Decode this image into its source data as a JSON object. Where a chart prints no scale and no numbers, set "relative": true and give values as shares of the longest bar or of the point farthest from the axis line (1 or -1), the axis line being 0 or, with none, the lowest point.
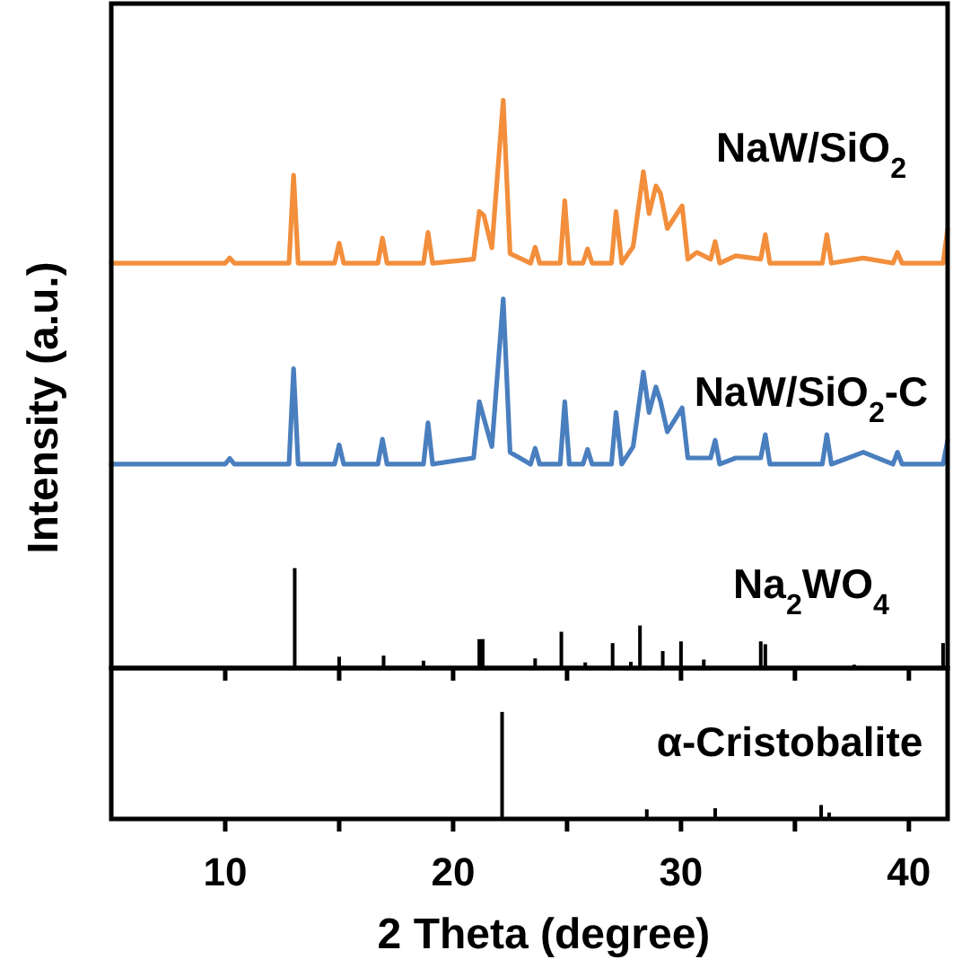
{
  "chart_data": [
    {
      "type": "line",
      "relative": true,
      "ylabel": "Intensity (a.u.)",
      "xlim": [
        5,
        41.7
      ],
      "xticks": [
        10,
        {
          "value": 15,
          "label": null
        },
        20,
        {
          "value": 25,
          "label": null
        },
        30,
        {
          "value": 35,
          "label": null
        },
        40
      ],
      "tick_labels": false,
      "series": [
        {
          "name": "NaW/SiO$_{2}$",
          "color": "#f28e3c",
          "x": [
            5,
            10.0,
            10.2,
            10.4,
            12.8,
            13.0,
            13.2,
            14.8,
            15.0,
            15.2,
            16.7,
            16.9,
            17.1,
            18.7,
            18.9,
            19.1,
            20.9,
            21.15,
            21.35,
            21.7,
            22.2,
            22.5,
            23.4,
            23.6,
            23.8,
            24.7,
            24.9,
            25.1,
            25.7,
            25.9,
            26.1,
            26.95,
            27.15,
            27.4,
            27.9,
            28.35,
            28.6,
            28.9,
            29.1,
            29.4,
            30.05,
            30.3,
            30.7,
            31.3,
            31.5,
            31.7,
            32.4,
            33.5,
            33.7,
            33.9,
            36.2,
            36.4,
            36.6,
            38.0,
            39.3,
            39.5,
            39.7,
            41.5,
            41.7
          ],
          "values": [
            0.713,
            0.713,
            0.722,
            0.713,
            0.713,
            0.868,
            0.713,
            0.713,
            0.748,
            0.713,
            0.713,
            0.757,
            0.713,
            0.713,
            0.767,
            0.713,
            0.72,
            0.804,
            0.797,
            0.74,
            1.0,
            0.73,
            0.713,
            0.741,
            0.713,
            0.713,
            0.823,
            0.713,
            0.713,
            0.738,
            0.713,
            0.713,
            0.804,
            0.713,
            0.742,
            0.874,
            0.8,
            0.849,
            0.836,
            0.774,
            0.814,
            0.72,
            0.732,
            0.72,
            0.751,
            0.713,
            0.726,
            0.72,
            0.763,
            0.713,
            0.713,
            0.763,
            0.713,
            0.722,
            0.713,
            0.732,
            0.713,
            0.713,
            0.773
          ]
        },
        {
          "name": "NaW/SiO$_{2}$-C",
          "color": "#4a7fbf",
          "x": [
            5,
            10.0,
            10.2,
            10.4,
            12.8,
            13.0,
            13.2,
            14.8,
            15.0,
            15.2,
            16.7,
            16.9,
            17.1,
            18.7,
            18.9,
            19.1,
            20.9,
            21.15,
            21.35,
            21.7,
            22.2,
            22.5,
            23.4,
            23.6,
            23.8,
            24.7,
            24.9,
            25.1,
            25.7,
            25.9,
            26.1,
            26.95,
            27.15,
            27.4,
            27.9,
            28.35,
            28.6,
            28.9,
            29.1,
            29.4,
            30.05,
            30.3,
            30.7,
            31.3,
            31.5,
            31.7,
            32.4,
            33.5,
            33.7,
            33.9,
            36.2,
            36.4,
            36.6,
            38.0,
            39.3,
            39.5,
            39.7,
            41.5,
            41.7
          ],
          "values": [
            0.359,
            0.359,
            0.369,
            0.359,
            0.359,
            0.527,
            0.359,
            0.359,
            0.393,
            0.359,
            0.359,
            0.403,
            0.359,
            0.359,
            0.432,
            0.359,
            0.37,
            0.469,
            0.44,
            0.39,
            0.65,
            0.38,
            0.359,
            0.387,
            0.359,
            0.359,
            0.469,
            0.359,
            0.359,
            0.385,
            0.359,
            0.359,
            0.45,
            0.359,
            0.39,
            0.521,
            0.45,
            0.495,
            0.47,
            0.416,
            0.458,
            0.37,
            0.37,
            0.37,
            0.401,
            0.359,
            0.37,
            0.37,
            0.411,
            0.359,
            0.359,
            0.411,
            0.359,
            0.38,
            0.359,
            0.38,
            0.359,
            0.359,
            0.401
          ]
        },
        {
          "name": "Na$_{2}$WO$_{4}$",
          "type": "bar",
          "color": "#000000",
          "x": [
            13.05,
            15.0,
            16.95,
            18.7,
            21.15,
            21.3,
            23.6,
            24.75,
            25.8,
            27.0,
            27.8,
            28.2,
            29.2,
            30.0,
            31.0,
            33.5,
            33.7,
            37.6,
            41.5
          ],
          "values": [
            0.176,
            0.02,
            0.022,
            0.013,
            0.051,
            0.051,
            0.017,
            0.064,
            0.01,
            0.044,
            0.011,
            0.075,
            0.03,
            0.047,
            0.015,
            0.047,
            0.042,
            0.006,
            0.044
          ]
        }
      ]
    },
    {
      "type": "bar",
      "relative": true,
      "xlabel": "2 Theta (degree)",
      "xlim": [
        5,
        41.7
      ],
      "xticks": [
        10,
        {
          "value": 15,
          "label": null
        },
        20,
        {
          "value": 25,
          "label": null
        },
        30,
        {
          "value": 35,
          "label": null
        },
        40
      ],
      "tick_labels": "x",
      "series": [
        {
          "name": "α-Cristobalite",
          "color": "#000000",
          "x": [
            22.15,
            28.5,
            31.5,
            36.15,
            36.5
          ],
          "values": [
            1,
            0.09,
            0.1,
            0.13,
            0.06
          ]
        }
      ]
    }
  ]
}
